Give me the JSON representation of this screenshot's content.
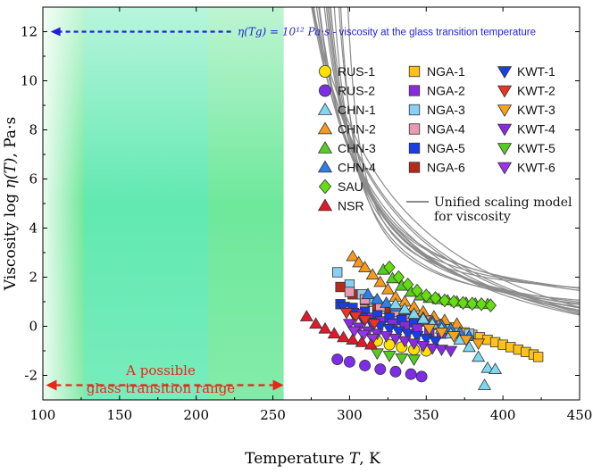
{
  "chart_data": {
    "type": "scatter",
    "xlabel_prefix": "Temperature ",
    "xlabel_var": "T",
    "xlabel_unit": ", K",
    "ylabel_prefix": "Viscosity  log ",
    "ylabel_var": "η(T)",
    "ylabel_unit": ", Pa·s",
    "xlim": [
      100,
      450
    ],
    "ylim": [
      -3,
      13
    ],
    "xticks": [
      100,
      150,
      200,
      250,
      300,
      350,
      400,
      450
    ],
    "yticks": [
      -2,
      0,
      2,
      4,
      6,
      8,
      10,
      12
    ],
    "annotation_top": {
      "math": "η(Tg) = 10¹² Pa·s",
      "text": " - viscosity at the glass transition temperature",
      "y": 12,
      "x_start": 105,
      "x_end": 445,
      "color": "#1f1fd6"
    },
    "annotation_range": {
      "line1": "A possible",
      "line2": "glass transition range",
      "y": -2.4,
      "x_start": 102,
      "x_end": 257,
      "color": "#e8261a"
    },
    "glass_region": {
      "x_start": 100,
      "x_end": 257,
      "core_start": 127,
      "core_end": 208,
      "color": "#3ee07a"
    },
    "legend": [
      {
        "label": "RUS-1",
        "marker": "circle",
        "color": "#ffe000"
      },
      {
        "label": "RUS-2",
        "marker": "circle",
        "color": "#7b2ee6"
      },
      {
        "label": "CHN-1",
        "marker": "triangle-up",
        "color": "#7fd8f0"
      },
      {
        "label": "CHN-2",
        "marker": "triangle-up",
        "color": "#f79a1c"
      },
      {
        "label": "CHN-3",
        "marker": "triangle-up",
        "color": "#55cc22"
      },
      {
        "label": "CHN-4",
        "marker": "triangle-up",
        "color": "#2e7fe6"
      },
      {
        "label": "SAU",
        "marker": "diamond",
        "color": "#66dd11"
      },
      {
        "label": "NSR",
        "marker": "triangle-up",
        "color": "#e01a2a"
      },
      {
        "label": "NGA-1",
        "marker": "square",
        "color": "#ffc21a"
      },
      {
        "label": "NGA-2",
        "marker": "square",
        "color": "#8a2be2"
      },
      {
        "label": "NGA-3",
        "marker": "square",
        "color": "#8ad0f5"
      },
      {
        "label": "NGA-4",
        "marker": "square",
        "color": "#e69ab4"
      },
      {
        "label": "NGA-5",
        "marker": "square",
        "color": "#1a3ee6"
      },
      {
        "label": "NGA-6",
        "marker": "square",
        "color": "#b52a1a"
      },
      {
        "label": "KWT-1",
        "marker": "triangle-down",
        "color": "#1a3ee6"
      },
      {
        "label": "KWT-2",
        "marker": "triangle-down",
        "color": "#ee3322"
      },
      {
        "label": "KWT-3",
        "marker": "triangle-down",
        "color": "#f5a21c"
      },
      {
        "label": "KWT-4",
        "marker": "triangle-down",
        "color": "#8a2be2"
      },
      {
        "label": "KWT-5",
        "marker": "triangle-down",
        "color": "#55cc22"
      },
      {
        "label": "KWT-6",
        "marker": "triangle-down",
        "color": "#9a33ee"
      }
    ],
    "model_legend": {
      "line1": "Unified scaling model",
      "line2": "for viscosity",
      "color": "#8c8c8c"
    },
    "model_curves": [
      {
        "A": 0.6,
        "T0": 280,
        "C": 18
      },
      {
        "A": 0.3,
        "T0": 270,
        "C": 25
      },
      {
        "A": 0.0,
        "T0": 265,
        "C": 30
      },
      {
        "A": -0.4,
        "T0": 268,
        "C": 28
      },
      {
        "A": -0.8,
        "T0": 262,
        "C": 35
      },
      {
        "A": -1.1,
        "T0": 258,
        "C": 40
      },
      {
        "A": -1.5,
        "T0": 250,
        "C": 48
      },
      {
        "A": -1.8,
        "T0": 245,
        "C": 55
      },
      {
        "A": -2.2,
        "T0": 240,
        "C": 62
      },
      {
        "A": -2.6,
        "T0": 232,
        "C": 75
      },
      {
        "A": -3.0,
        "T0": 225,
        "C": 90
      },
      {
        "A": 0.9,
        "T0": 290,
        "C": 12
      },
      {
        "A": -0.2,
        "T0": 275,
        "C": 22
      },
      {
        "A": -1.3,
        "T0": 252,
        "C": 45
      },
      {
        "A": -2.9,
        "T0": 228,
        "C": 85
      },
      {
        "A": 0.2,
        "T0": 283,
        "C": 16
      },
      {
        "A": -3.3,
        "T0": 218,
        "C": 105
      }
    ],
    "series": [
      {
        "name": "NGA-1",
        "marker": "square",
        "color": "#ffc21a",
        "points": [
          [
            348,
            0.3
          ],
          [
            355,
            0.15
          ],
          [
            360,
            0.05
          ],
          [
            365,
            -0.05
          ],
          [
            370,
            -0.15
          ],
          [
            375,
            -0.25
          ],
          [
            380,
            -0.35
          ],
          [
            385,
            -0.45
          ],
          [
            390,
            -0.55
          ],
          [
            395,
            -0.65
          ],
          [
            400,
            -0.75
          ],
          [
            405,
            -0.85
          ],
          [
            410,
            -0.95
          ],
          [
            415,
            -1.05
          ],
          [
            420,
            -1.15
          ],
          [
            423,
            -1.25
          ]
        ]
      },
      {
        "name": "NGA-3",
        "marker": "square",
        "color": "#8ad0f5",
        "points": [
          [
            292,
            2.2
          ],
          [
            300,
            1.7
          ],
          [
            308,
            1.3
          ],
          [
            315,
            1.0
          ],
          [
            322,
            0.7
          ],
          [
            330,
            0.5
          ],
          [
            338,
            0.35
          ],
          [
            346,
            0.2
          ],
          [
            354,
            0.05
          ],
          [
            362,
            -0.1
          ],
          [
            370,
            -0.2
          ],
          [
            378,
            -0.3
          ]
        ]
      },
      {
        "name": "NGA-6",
        "marker": "square",
        "color": "#b52a1a",
        "points": [
          [
            294,
            1.6
          ],
          [
            302,
            1.3
          ],
          [
            310,
            1.05
          ],
          [
            318,
            0.85
          ],
          [
            326,
            0.65
          ],
          [
            334,
            0.5
          ],
          [
            342,
            0.35
          ],
          [
            350,
            0.2
          ]
        ]
      },
      {
        "name": "NGA-4",
        "marker": "square",
        "color": "#e69ab4",
        "points": [
          [
            300,
            1.4
          ],
          [
            310,
            1.1
          ],
          [
            320,
            0.8
          ],
          [
            330,
            0.6
          ],
          [
            340,
            0.4
          ],
          [
            350,
            0.25
          ],
          [
            360,
            0.1
          ]
        ]
      },
      {
        "name": "NGA-5",
        "marker": "square",
        "color": "#1a3ee6",
        "points": [
          [
            294,
            0.9
          ],
          [
            302,
            0.75
          ],
          [
            310,
            0.6
          ],
          [
            318,
            0.45
          ],
          [
            326,
            0.35
          ],
          [
            334,
            0.25
          ],
          [
            342,
            0.15
          ]
        ]
      },
      {
        "name": "NGA-2",
        "marker": "square",
        "color": "#8a2be2",
        "points": [
          [
            305,
            0.5
          ],
          [
            312,
            0.35
          ],
          [
            320,
            0.2
          ],
          [
            328,
            0.1
          ],
          [
            336,
            0.0
          ],
          [
            344,
            -0.1
          ],
          [
            352,
            -0.2
          ],
          [
            360,
            -0.3
          ]
        ]
      },
      {
        "name": "CHN-2",
        "marker": "triangle-up",
        "color": "#f79a1c",
        "points": [
          [
            302,
            2.85
          ],
          [
            306,
            2.6
          ],
          [
            310,
            2.4
          ],
          [
            315,
            2.1
          ],
          [
            320,
            1.8
          ],
          [
            325,
            1.5
          ],
          [
            330,
            1.2
          ],
          [
            336,
            1.0
          ],
          [
            342,
            0.8
          ],
          [
            348,
            0.6
          ],
          [
            355,
            0.4
          ],
          [
            362,
            0.25
          ],
          [
            370,
            0.1
          ]
        ]
      },
      {
        "name": "CHN-3",
        "marker": "triangle-up",
        "color": "#55cc22",
        "points": [
          [
            322,
            2.3
          ],
          [
            328,
            1.95
          ],
          [
            334,
            1.65
          ],
          [
            340,
            1.4
          ],
          [
            346,
            1.25
          ],
          [
            352,
            1.15
          ],
          [
            358,
            1.1
          ],
          [
            364,
            1.05
          ],
          [
            370,
            1.0
          ],
          [
            376,
            0.95
          ],
          [
            382,
            0.92
          ],
          [
            390,
            0.9
          ]
        ]
      },
      {
        "name": "SAU",
        "marker": "diamond",
        "color": "#66dd11",
        "points": [
          [
            326,
            2.4
          ],
          [
            332,
            2.0
          ],
          [
            338,
            1.7
          ],
          [
            344,
            1.45
          ],
          [
            350,
            1.25
          ],
          [
            356,
            1.15
          ],
          [
            362,
            1.05
          ],
          [
            368,
            1.0
          ],
          [
            374,
            0.95
          ],
          [
            380,
            0.92
          ],
          [
            386,
            0.9
          ],
          [
            392,
            0.85
          ]
        ]
      },
      {
        "name": "CHN-4",
        "marker": "triangle-up",
        "color": "#2e7fe6",
        "points": [
          [
            312,
            1.3
          ],
          [
            318,
            1.1
          ],
          [
            324,
            0.95
          ],
          [
            330,
            0.8
          ],
          [
            336,
            0.65
          ],
          [
            342,
            0.5
          ],
          [
            348,
            0.35
          ],
          [
            354,
            0.2
          ],
          [
            360,
            0.05
          ],
          [
            366,
            -0.1
          ],
          [
            372,
            -0.25
          ],
          [
            378,
            -0.4
          ]
        ]
      },
      {
        "name": "CHN-1",
        "marker": "triangle-up",
        "color": "#7fd8f0",
        "points": [
          [
            330,
            0.9
          ],
          [
            336,
            0.7
          ],
          [
            342,
            0.5
          ],
          [
            348,
            0.3
          ],
          [
            354,
            0.1
          ],
          [
            360,
            -0.1
          ],
          [
            366,
            -0.3
          ],
          [
            372,
            -0.55
          ],
          [
            378,
            -0.85
          ],
          [
            384,
            -1.25
          ],
          [
            390,
            -1.7
          ],
          [
            395,
            -1.75
          ],
          [
            388,
            -2.4
          ]
        ]
      },
      {
        "name": "RUS-1",
        "marker": "circle",
        "color": "#ffe000",
        "points": [
          [
            318,
            -0.6
          ],
          [
            326,
            -0.75
          ],
          [
            334,
            -0.85
          ],
          [
            342,
            -0.95
          ],
          [
            350,
            -1.0
          ]
        ]
      },
      {
        "name": "RUS-2",
        "marker": "circle",
        "color": "#7b2ee6",
        "points": [
          [
            292,
            -1.35
          ],
          [
            300,
            -1.45
          ],
          [
            310,
            -1.6
          ],
          [
            320,
            -1.75
          ],
          [
            330,
            -1.85
          ],
          [
            340,
            -1.95
          ],
          [
            347,
            -2.05
          ]
        ]
      },
      {
        "name": "KWT-1",
        "marker": "triangle-down",
        "color": "#1a3ee6",
        "points": [
          [
            296,
            0.8
          ],
          [
            302,
            0.55
          ],
          [
            308,
            0.35
          ],
          [
            314,
            0.15
          ],
          [
            320,
            0.0
          ],
          [
            326,
            -0.1
          ],
          [
            332,
            -0.2
          ],
          [
            338,
            -0.3
          ],
          [
            344,
            -0.4
          ],
          [
            350,
            -0.5
          ],
          [
            356,
            -0.6
          ]
        ]
      },
      {
        "name": "KWT-2",
        "marker": "triangle-down",
        "color": "#ee3322",
        "points": [
          [
            298,
            0.55
          ],
          [
            304,
            0.4
          ],
          [
            310,
            0.25
          ],
          [
            316,
            0.1
          ]
        ]
      },
      {
        "name": "KWT-3",
        "marker": "triangle-down",
        "color": "#f5a21c",
        "points": [
          [
            352,
            -0.1
          ],
          [
            360,
            -0.25
          ],
          [
            368,
            -0.4
          ],
          [
            376,
            -0.55
          ],
          [
            384,
            -0.7
          ]
        ]
      },
      {
        "name": "KWT-4",
        "marker": "triangle-down",
        "color": "#8a2be2",
        "points": [
          [
            300,
            0.1
          ],
          [
            306,
            -0.05
          ],
          [
            312,
            -0.2
          ],
          [
            318,
            -0.3
          ],
          [
            324,
            -0.4
          ],
          [
            330,
            -0.5
          ],
          [
            336,
            -0.6
          ],
          [
            342,
            -0.7
          ],
          [
            348,
            -0.8
          ],
          [
            354,
            -0.9
          ],
          [
            360,
            -0.95
          ],
          [
            366,
            -1.0
          ]
        ]
      },
      {
        "name": "KWT-6",
        "marker": "triangle-down",
        "color": "#9a33ee",
        "points": [
          [
            303,
            -0.2
          ],
          [
            309,
            -0.35
          ],
          [
            315,
            -0.5
          ]
        ]
      },
      {
        "name": "KWT-5",
        "marker": "triangle-down",
        "color": "#55cc22",
        "points": [
          [
            318,
            -1.1
          ],
          [
            326,
            -1.2
          ],
          [
            334,
            -1.3
          ],
          [
            342,
            -1.35
          ]
        ]
      },
      {
        "name": "NSR",
        "marker": "triangle-up",
        "color": "#e01a2a",
        "points": [
          [
            272,
            0.4
          ],
          [
            278,
            0.1
          ],
          [
            284,
            -0.1
          ],
          [
            290,
            -0.3
          ],
          [
            296,
            -0.45
          ],
          [
            302,
            -0.55
          ],
          [
            308,
            -0.65
          ],
          [
            314,
            -0.75
          ]
        ]
      }
    ]
  }
}
